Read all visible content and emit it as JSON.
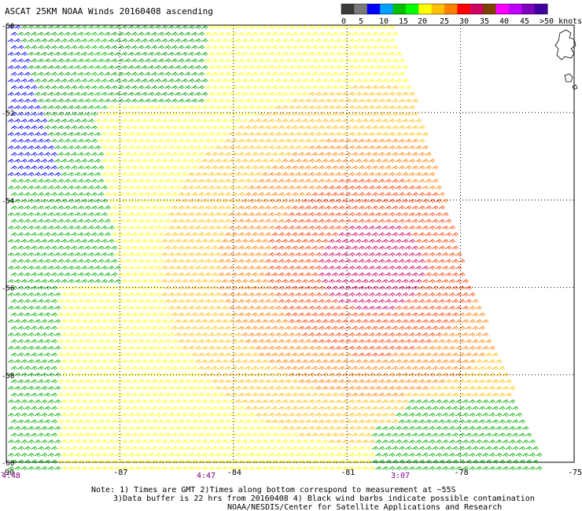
{
  "title": "ASCAT 25KM NOAA Winds 20160408 ascending",
  "colorbar": {
    "labels": [
      "0",
      "5",
      "10",
      "15",
      "20",
      "25",
      "30",
      "35",
      "40",
      "45",
      ">50 knots"
    ],
    "colors": [
      "#3a3a3a",
      "#7a7a7a",
      "#0000ff",
      "#00a0ff",
      "#00c000",
      "#00ff00",
      "#ffff00",
      "#ffc000",
      "#ff8000",
      "#ff0000",
      "#d00060",
      "#804000",
      "#ff00ff",
      "#c000ff",
      "#8000c0",
      "#4000a0"
    ]
  },
  "x_axis": {
    "ticks": [
      "-90",
      "-87",
      "-84",
      "-81",
      "-78",
      "-75"
    ]
  },
  "y_axis": {
    "ticks": [
      "-50",
      "-52",
      "-54",
      "-56",
      "-58",
      "-60"
    ]
  },
  "times": [
    "4:48",
    "4:47",
    "3:07"
  ],
  "notes": [
    "Note: 1) Times are GMT 2)Times along bottom correspond to measurement at ~55S",
    "3)Data buffer is 22 hrs from 20160408 4) Black wind barbs indicate possible contamination",
    "NOAA/NESDIS/Center for Satellite Applications and Research"
  ]
}
